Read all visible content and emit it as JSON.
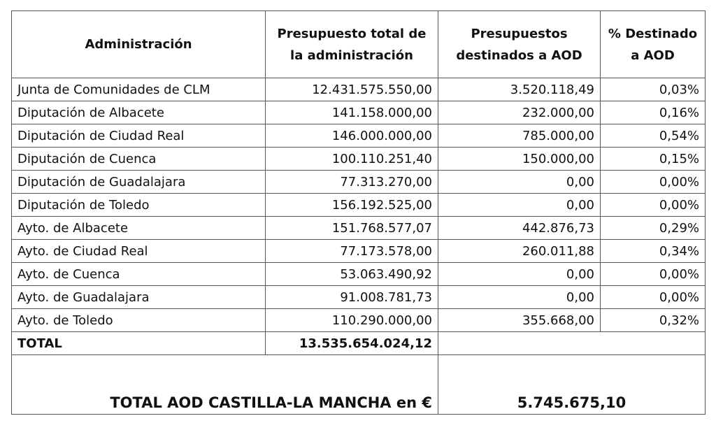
{
  "headers": [
    "Administración",
    "Presupuesto total de la administración",
    "Presupuestos destinados a AOD",
    "% Destinado a AOD"
  ],
  "rows": [
    [
      "Junta de Comunidades de CLM",
      "12.431.575.550,00",
      "3.520.118,49",
      "0,03%"
    ],
    [
      "Diputación de Albacete",
      "141.158.000,00",
      "232.000,00",
      "0,16%"
    ],
    [
      "Diputación de Ciudad Real",
      "146.000.000,00",
      "785.000,00",
      "0,54%"
    ],
    [
      "Diputación de Cuenca",
      "100.110.251,40",
      "150.000,00",
      "0,15%"
    ],
    [
      "Diputación de Guadalajara",
      "77.313.270,00",
      "0,00",
      "0,00%"
    ],
    [
      "Diputación de Toledo",
      "156.192.525,00",
      "0,00",
      "0,00%"
    ],
    [
      "Ayto. de Albacete",
      "151.768.577,07",
      "442.876,73",
      "0,29%"
    ],
    [
      "Ayto. de Ciudad Real",
      "77.173.578,00",
      "260.011,88",
      "0,34%"
    ],
    [
      "Ayto. de Cuenca",
      "53.063.490,92",
      "0,00",
      "0,00%"
    ],
    [
      "Ayto. de Guadalajara",
      "91.008.781,73",
      "0,00",
      "0,00%"
    ],
    [
      "Ayto. de Toledo",
      "110.290.000,00",
      "355.668,00",
      "0,32%"
    ]
  ],
  "total": {
    "label": "TOTAL",
    "value": "13.535.654.024,12"
  },
  "final": {
    "label": "TOTAL AOD CASTILLA-LA MANCHA en €",
    "value": "5.745.675,10"
  }
}
